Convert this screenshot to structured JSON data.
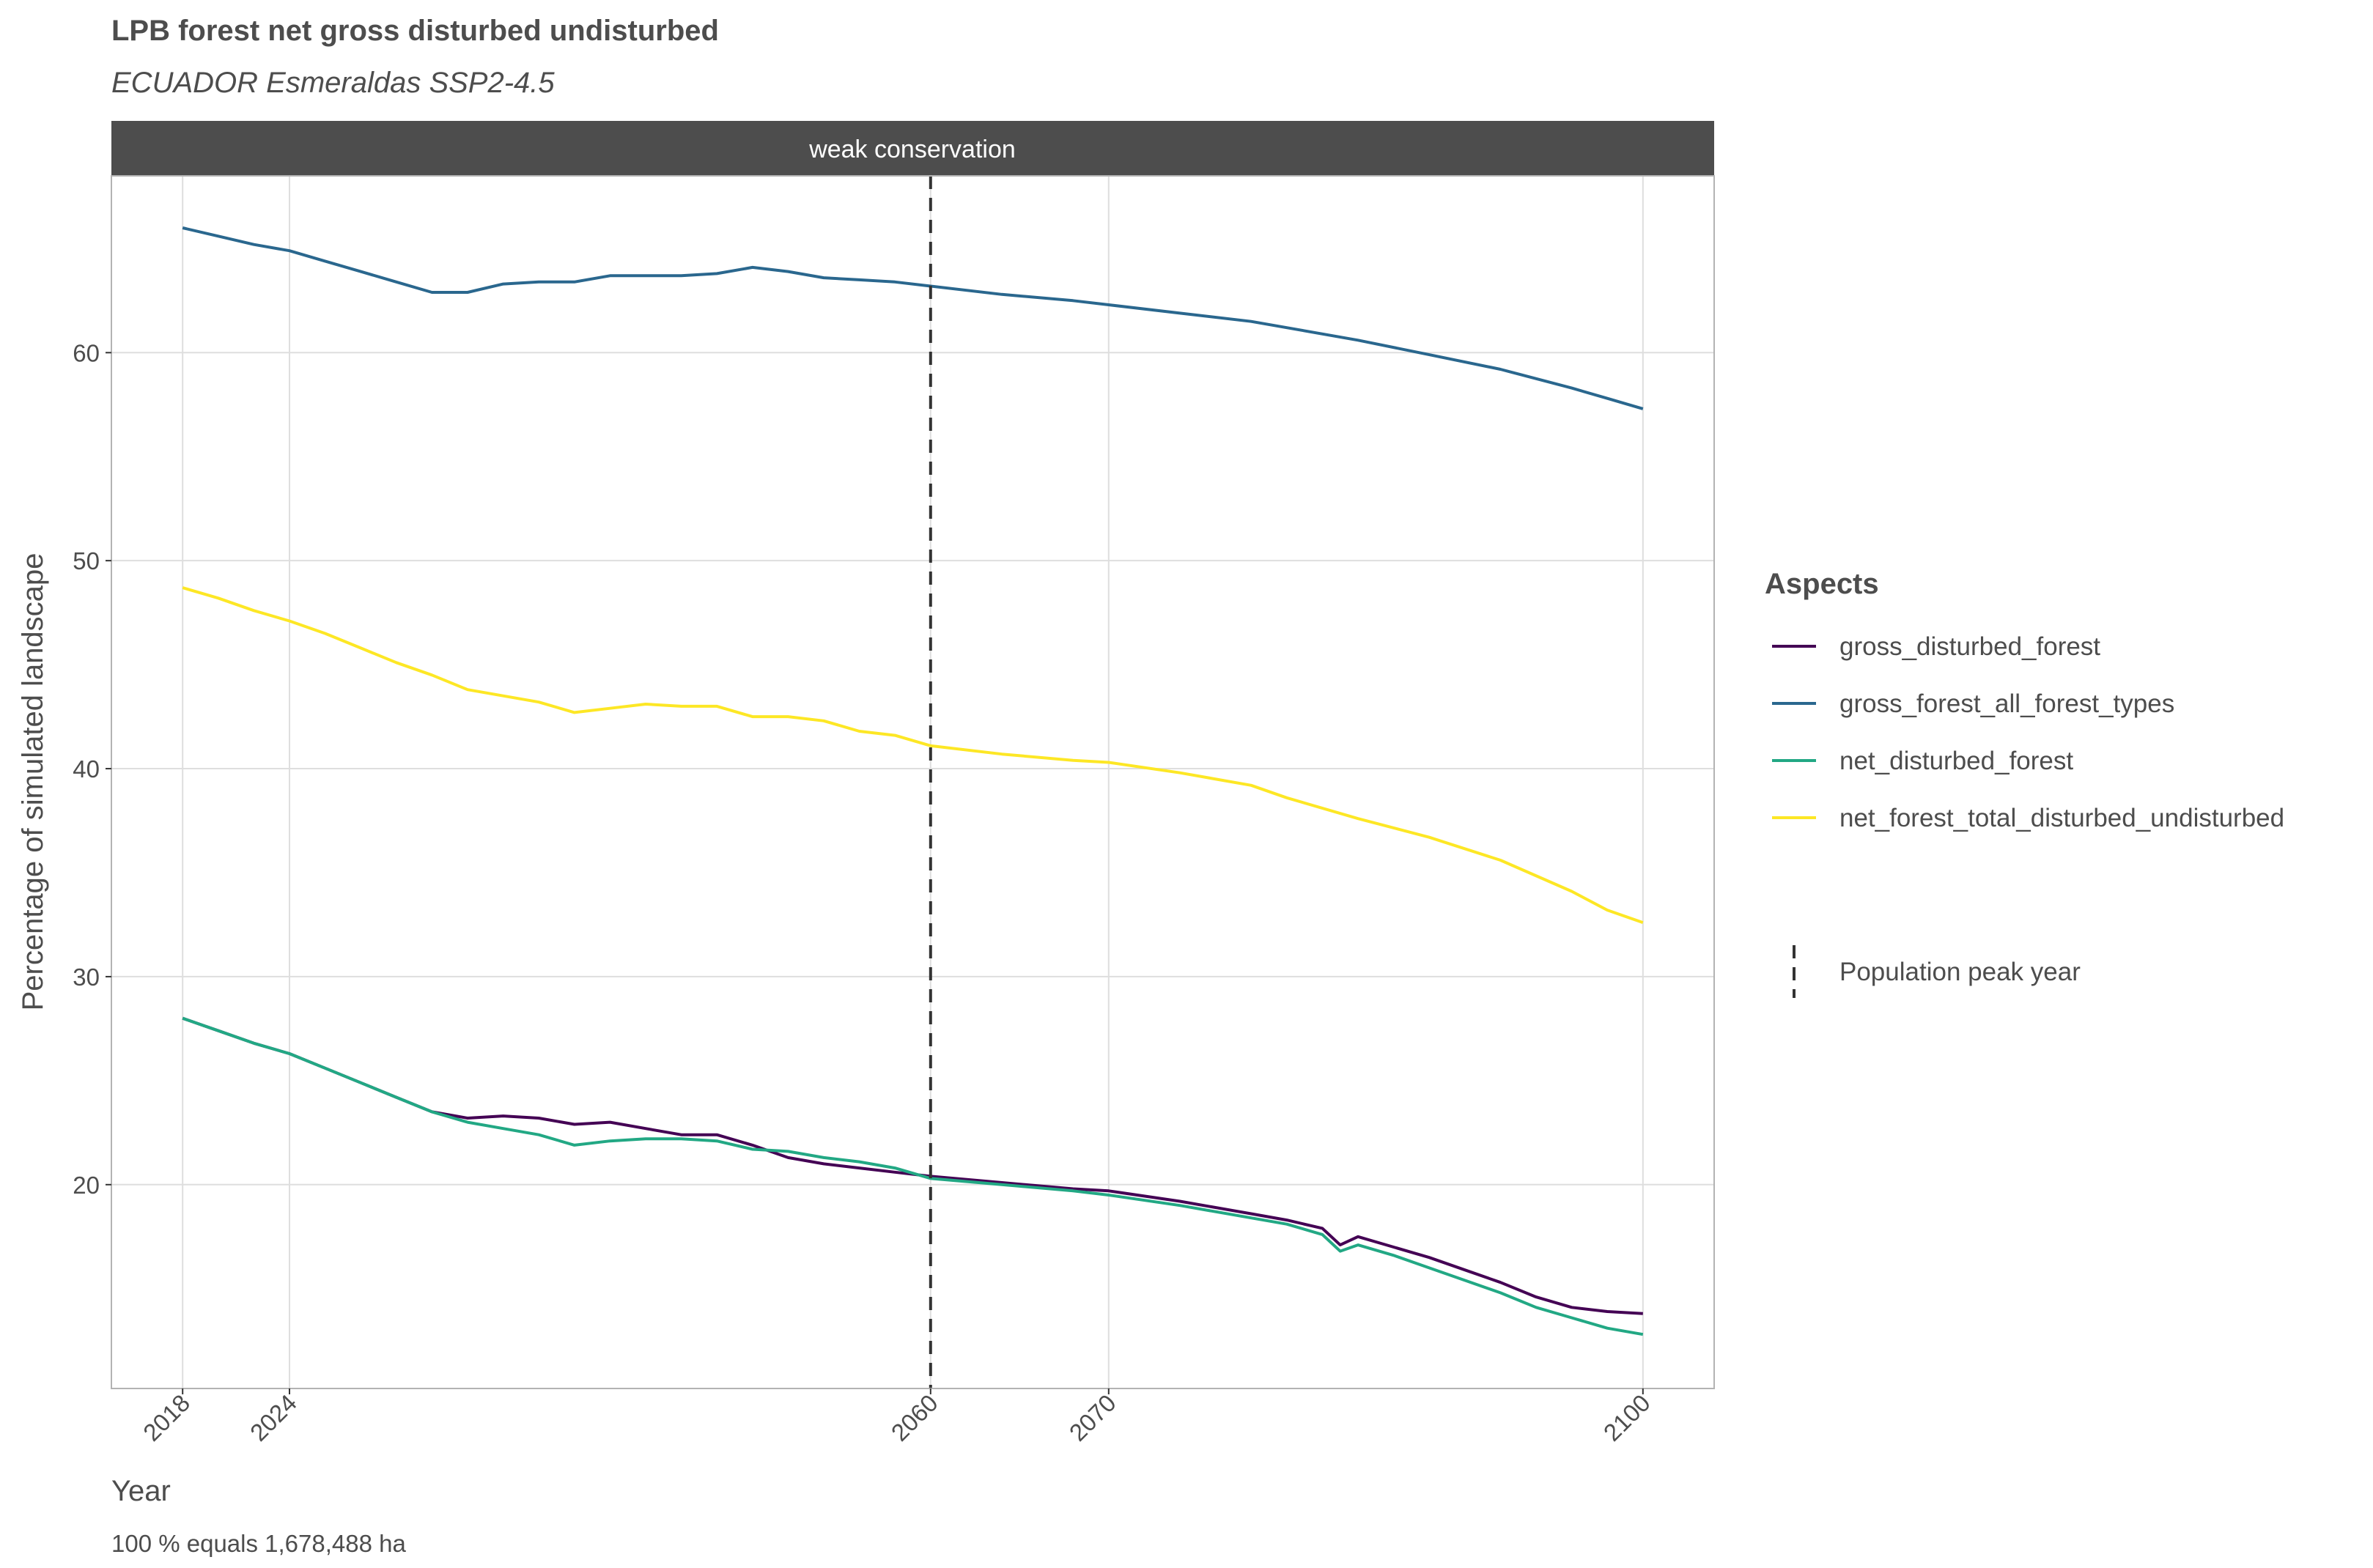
{
  "title": "LPB forest net gross disturbed undisturbed",
  "subtitle": "ECUADOR Esmeraldas SSP2-4.5",
  "facet_label": "weak conservation",
  "caption": "100 % equals 1,678,488 ha",
  "colors": {
    "strip_bg": "#4d4d4d",
    "grid": "#dedede",
    "panel_border": "#b3b3b3",
    "peak_line": "#333333"
  },
  "chart_data": {
    "type": "line",
    "xlabel": "Year",
    "ylabel": "Percentage of simulated landscape",
    "xlim": [
      2014,
      2104
    ],
    "ylim": [
      10.2,
      68.5
    ],
    "x_ticks": [
      2018,
      2024,
      2060,
      2070,
      2100
    ],
    "y_ticks": [
      20,
      30,
      40,
      50,
      60
    ],
    "grid": true,
    "legend_title": "Aspects",
    "legend_position": "right",
    "vline": {
      "x": 2060,
      "label": "Population peak year",
      "style": "dashed"
    },
    "series": [
      {
        "name": "gross_disturbed_forest",
        "color": "#440154",
        "points": [
          [
            2018,
            28.0
          ],
          [
            2020,
            27.4
          ],
          [
            2022,
            26.8
          ],
          [
            2024,
            26.3
          ],
          [
            2026,
            25.6
          ],
          [
            2028,
            24.9
          ],
          [
            2030,
            24.2
          ],
          [
            2032,
            23.5
          ],
          [
            2034,
            23.2
          ],
          [
            2036,
            23.3
          ],
          [
            2038,
            23.2
          ],
          [
            2040,
            22.9
          ],
          [
            2042,
            23.0
          ],
          [
            2044,
            22.7
          ],
          [
            2046,
            22.4
          ],
          [
            2048,
            22.4
          ],
          [
            2050,
            21.9
          ],
          [
            2052,
            21.3
          ],
          [
            2054,
            21.0
          ],
          [
            2056,
            20.8
          ],
          [
            2058,
            20.6
          ],
          [
            2060,
            20.4
          ],
          [
            2064,
            20.1
          ],
          [
            2068,
            19.8
          ],
          [
            2070,
            19.7
          ],
          [
            2074,
            19.2
          ],
          [
            2078,
            18.6
          ],
          [
            2080,
            18.3
          ],
          [
            2082,
            17.9
          ],
          [
            2083,
            17.1
          ],
          [
            2084,
            17.5
          ],
          [
            2086,
            17.0
          ],
          [
            2088,
            16.5
          ],
          [
            2090,
            15.9
          ],
          [
            2092,
            15.3
          ],
          [
            2094,
            14.6
          ],
          [
            2096,
            14.1
          ],
          [
            2098,
            13.9
          ],
          [
            2100,
            13.8
          ]
        ]
      },
      {
        "name": "gross_forest_all_forest_types",
        "color": "#2a678e",
        "points": [
          [
            2018,
            66.0
          ],
          [
            2020,
            65.6
          ],
          [
            2022,
            65.2
          ],
          [
            2024,
            64.9
          ],
          [
            2026,
            64.4
          ],
          [
            2028,
            63.9
          ],
          [
            2030,
            63.4
          ],
          [
            2032,
            62.9
          ],
          [
            2034,
            62.9
          ],
          [
            2036,
            63.3
          ],
          [
            2038,
            63.4
          ],
          [
            2040,
            63.4
          ],
          [
            2042,
            63.7
          ],
          [
            2044,
            63.7
          ],
          [
            2046,
            63.7
          ],
          [
            2048,
            63.8
          ],
          [
            2050,
            64.1
          ],
          [
            2052,
            63.9
          ],
          [
            2054,
            63.6
          ],
          [
            2056,
            63.5
          ],
          [
            2058,
            63.4
          ],
          [
            2060,
            63.2
          ],
          [
            2064,
            62.8
          ],
          [
            2068,
            62.5
          ],
          [
            2070,
            62.3
          ],
          [
            2074,
            61.9
          ],
          [
            2078,
            61.5
          ],
          [
            2080,
            61.2
          ],
          [
            2084,
            60.6
          ],
          [
            2088,
            59.9
          ],
          [
            2092,
            59.2
          ],
          [
            2096,
            58.3
          ],
          [
            2098,
            57.8
          ],
          [
            2100,
            57.3
          ]
        ]
      },
      {
        "name": "net_disturbed_forest",
        "color": "#22a884",
        "points": [
          [
            2018,
            28.0
          ],
          [
            2020,
            27.4
          ],
          [
            2022,
            26.8
          ],
          [
            2024,
            26.3
          ],
          [
            2026,
            25.6
          ],
          [
            2028,
            24.9
          ],
          [
            2030,
            24.2
          ],
          [
            2032,
            23.5
          ],
          [
            2034,
            23.0
          ],
          [
            2036,
            22.7
          ],
          [
            2038,
            22.4
          ],
          [
            2040,
            21.9
          ],
          [
            2042,
            22.1
          ],
          [
            2044,
            22.2
          ],
          [
            2046,
            22.2
          ],
          [
            2048,
            22.1
          ],
          [
            2050,
            21.7
          ],
          [
            2052,
            21.6
          ],
          [
            2054,
            21.3
          ],
          [
            2056,
            21.1
          ],
          [
            2058,
            20.8
          ],
          [
            2060,
            20.3
          ],
          [
            2064,
            20.0
          ],
          [
            2068,
            19.7
          ],
          [
            2070,
            19.5
          ],
          [
            2074,
            19.0
          ],
          [
            2078,
            18.4
          ],
          [
            2080,
            18.1
          ],
          [
            2082,
            17.6
          ],
          [
            2083,
            16.8
          ],
          [
            2084,
            17.1
          ],
          [
            2086,
            16.6
          ],
          [
            2088,
            16.0
          ],
          [
            2090,
            15.4
          ],
          [
            2092,
            14.8
          ],
          [
            2094,
            14.1
          ],
          [
            2096,
            13.6
          ],
          [
            2098,
            13.1
          ],
          [
            2100,
            12.8
          ]
        ]
      },
      {
        "name": "net_forest_total_disturbed_undisturbed",
        "color": "#fde725",
        "points": [
          [
            2018,
            48.7
          ],
          [
            2020,
            48.2
          ],
          [
            2022,
            47.6
          ],
          [
            2024,
            47.1
          ],
          [
            2026,
            46.5
          ],
          [
            2028,
            45.8
          ],
          [
            2030,
            45.1
          ],
          [
            2032,
            44.5
          ],
          [
            2034,
            43.8
          ],
          [
            2036,
            43.5
          ],
          [
            2038,
            43.2
          ],
          [
            2040,
            42.7
          ],
          [
            2042,
            42.9
          ],
          [
            2044,
            43.1
          ],
          [
            2046,
            43.0
          ],
          [
            2048,
            43.0
          ],
          [
            2050,
            42.5
          ],
          [
            2052,
            42.5
          ],
          [
            2054,
            42.3
          ],
          [
            2056,
            41.8
          ],
          [
            2058,
            41.6
          ],
          [
            2060,
            41.1
          ],
          [
            2064,
            40.7
          ],
          [
            2068,
            40.4
          ],
          [
            2070,
            40.3
          ],
          [
            2074,
            39.8
          ],
          [
            2078,
            39.2
          ],
          [
            2080,
            38.6
          ],
          [
            2084,
            37.6
          ],
          [
            2088,
            36.7
          ],
          [
            2092,
            35.6
          ],
          [
            2096,
            34.1
          ],
          [
            2098,
            33.2
          ],
          [
            2100,
            32.6
          ]
        ]
      }
    ]
  }
}
